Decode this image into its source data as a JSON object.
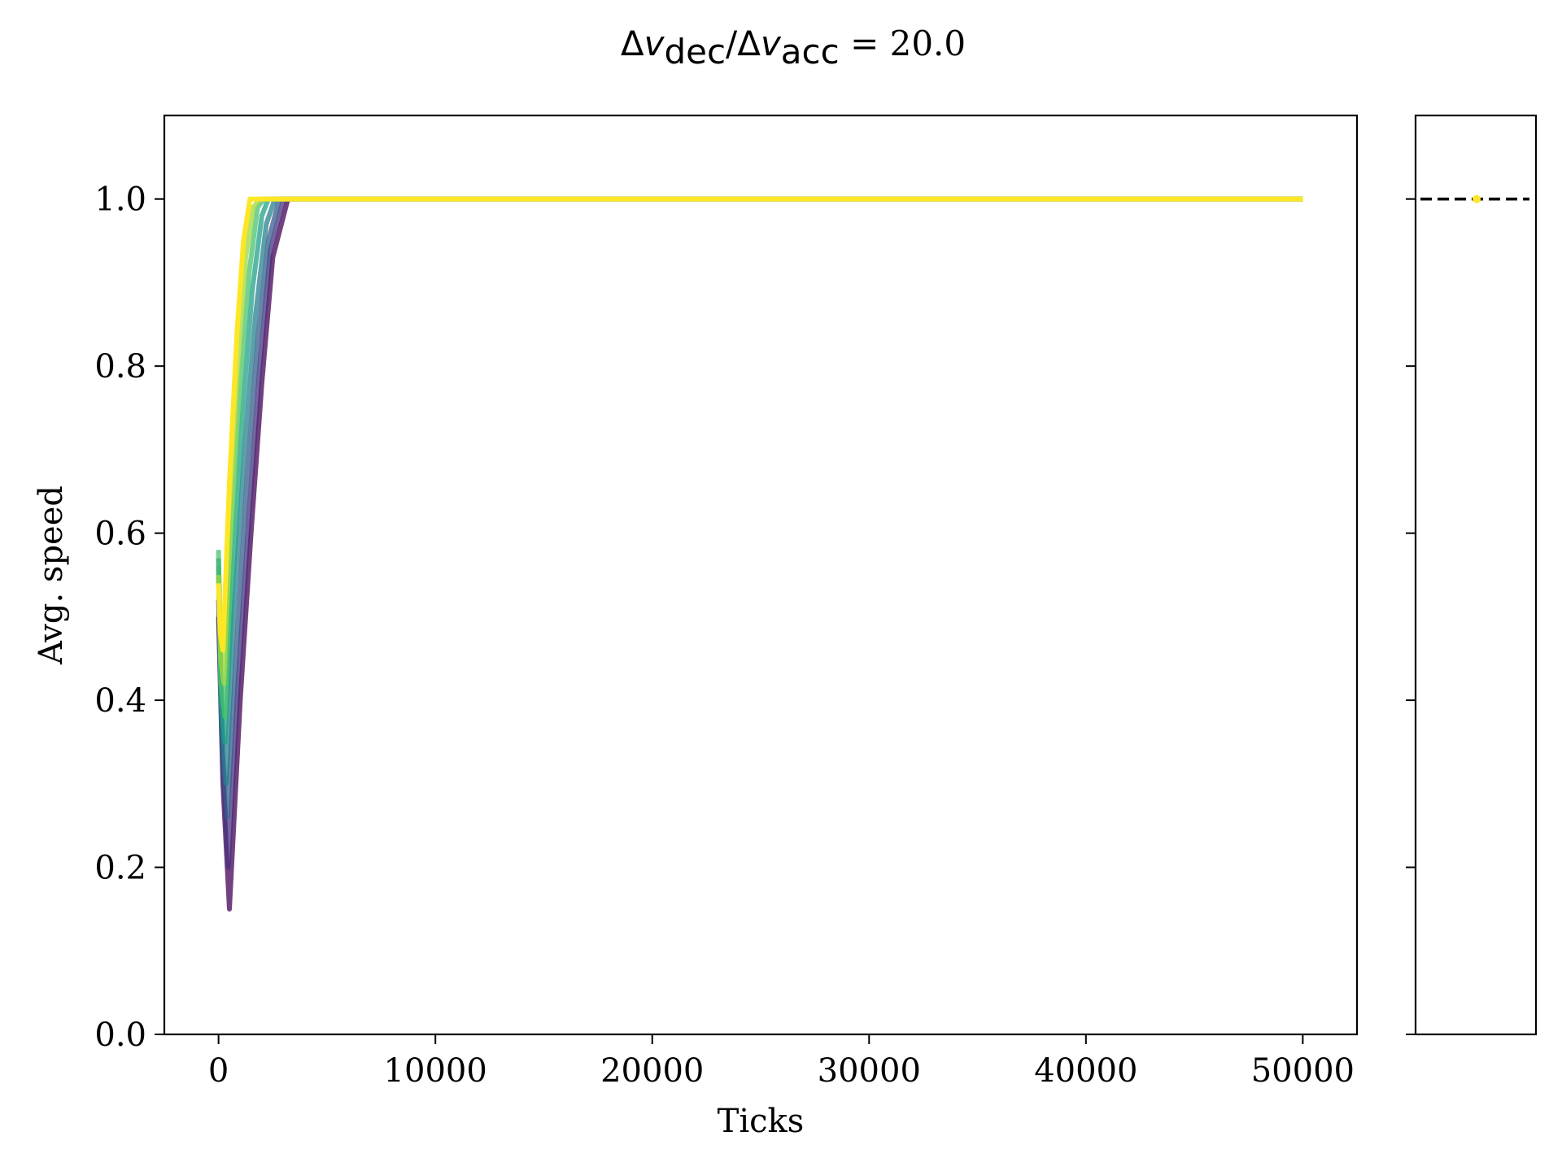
{
  "chart_data": [
    {
      "type": "line",
      "title": {
        "delta_symbol": "Δ",
        "v_symbol": "v",
        "sub_dec": "dec",
        "slash": "/",
        "sub_acc": "acc",
        "equals_value": " = 20.0"
      },
      "xlabel": "Ticks",
      "ylabel": "Avg. speed",
      "xlim": [
        -2500,
        52500
      ],
      "ylim": [
        0.0,
        1.1
      ],
      "xticks": [
        0,
        10000,
        20000,
        30000,
        40000,
        50000
      ],
      "xtick_labels": [
        "0",
        "10000",
        "20000",
        "30000",
        "40000",
        "50000"
      ],
      "yticks": [
        0.0,
        0.2,
        0.4,
        0.6,
        0.8,
        1.0
      ],
      "ytick_labels": [
        "0.0",
        "0.2",
        "0.4",
        "0.6",
        "0.8",
        "1.0"
      ],
      "colormap": "viridis",
      "colors": [
        "#440154",
        "#46317e",
        "#365b8c",
        "#277f8e",
        "#1fa187",
        "#4ac16d",
        "#a0da39",
        "#fde725"
      ],
      "series": [
        {
          "color": "#440154",
          "x": [
            0,
            200,
            500,
            1000,
            1500,
            2000,
            2500,
            3200,
            50000
          ],
          "y": [
            0.5,
            0.3,
            0.15,
            0.4,
            0.6,
            0.78,
            0.93,
            1.0,
            1.0
          ]
        },
        {
          "color": "#46317e",
          "x": [
            0,
            200,
            450,
            900,
            1400,
            1900,
            2400,
            3000,
            50000
          ],
          "y": [
            0.52,
            0.32,
            0.2,
            0.42,
            0.62,
            0.8,
            0.94,
            1.0,
            1.0
          ]
        },
        {
          "color": "#365b8c",
          "x": [
            0,
            150,
            400,
            800,
            1300,
            1800,
            2300,
            2800,
            50000
          ],
          "y": [
            0.55,
            0.35,
            0.26,
            0.45,
            0.66,
            0.83,
            0.95,
            1.0,
            1.0
          ]
        },
        {
          "color": "#277f8e",
          "x": [
            0,
            150,
            350,
            700,
            1200,
            1700,
            2200,
            2600,
            50000
          ],
          "y": [
            0.57,
            0.38,
            0.3,
            0.5,
            0.7,
            0.86,
            0.97,
            1.0,
            1.0
          ]
        },
        {
          "color": "#1fa187",
          "x": [
            0,
            120,
            300,
            650,
            1100,
            1550,
            2000,
            2300,
            50000
          ],
          "y": [
            0.56,
            0.4,
            0.35,
            0.54,
            0.74,
            0.89,
            0.98,
            1.0,
            1.0
          ]
        },
        {
          "color": "#4ac16d",
          "x": [
            0,
            100,
            300,
            600,
            1000,
            1400,
            1800,
            2100,
            50000
          ],
          "y": [
            0.58,
            0.42,
            0.38,
            0.58,
            0.77,
            0.91,
            0.99,
            1.0,
            1.0
          ]
        },
        {
          "color": "#a0da39",
          "x": [
            0,
            100,
            250,
            550,
            900,
            1250,
            1600,
            1900,
            50000
          ],
          "y": [
            0.55,
            0.45,
            0.42,
            0.62,
            0.8,
            0.93,
            0.99,
            1.0,
            1.0
          ]
        },
        {
          "color": "#fde725",
          "x": [
            0,
            80,
            200,
            500,
            850,
            1150,
            1450,
            1700,
            50000
          ],
          "y": [
            0.54,
            0.48,
            0.46,
            0.66,
            0.84,
            0.95,
            1.0,
            1.0,
            1.0
          ]
        }
      ]
    },
    {
      "type": "scatter",
      "ylim": [
        0.0,
        1.1
      ],
      "yticks": [
        0.0,
        0.2,
        0.4,
        0.6,
        0.8,
        1.0
      ],
      "reference_line": {
        "y": 1.0,
        "style": "dashed",
        "color": "#000000"
      },
      "points": [
        {
          "y": 1.0,
          "color": "#fde725"
        }
      ]
    }
  ]
}
